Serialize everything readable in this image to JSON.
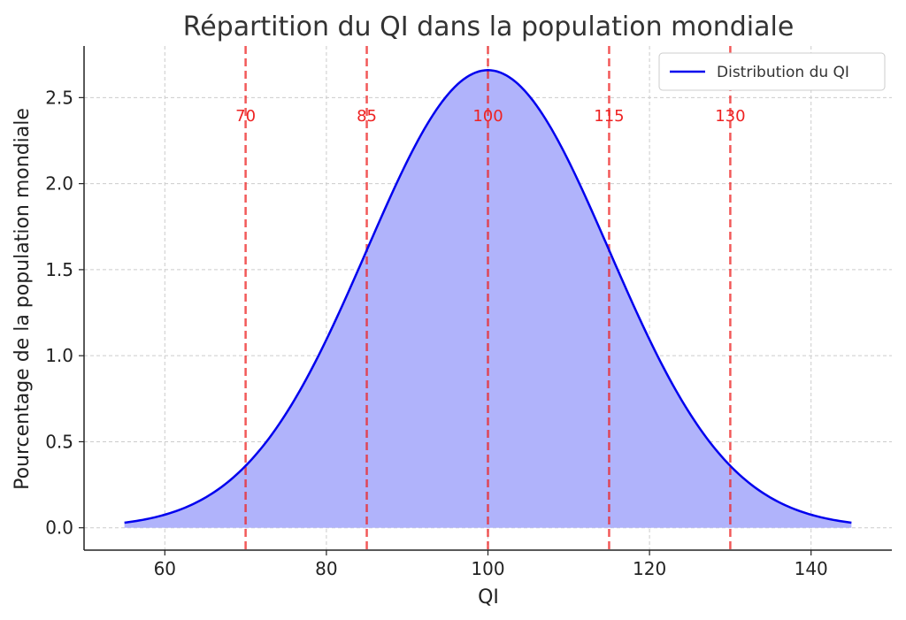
{
  "chart_data": {
    "type": "area",
    "title": "Répartition du QI dans la population mondiale",
    "xlabel": "QI",
    "ylabel": "Pourcentage de la population mondiale",
    "xlim": [
      50,
      150
    ],
    "ylim": [
      -0.13,
      2.8
    ],
    "x_ticks": [
      60,
      80,
      100,
      120,
      140
    ],
    "x_tick_labels": [
      "60",
      "80",
      "100",
      "120",
      "140"
    ],
    "y_ticks": [
      0.0,
      0.5,
      1.0,
      1.5,
      2.0,
      2.5
    ],
    "y_tick_labels": [
      "0.0",
      "0.5",
      "1.0",
      "1.5",
      "2.0",
      "2.5"
    ],
    "grid": true,
    "legend_position": "top-right",
    "series": [
      {
        "name": "Distribution du QI",
        "distribution": "normal",
        "mean": 100,
        "std": 15,
        "y_scale_percent": 100,
        "x_range": [
          55,
          145
        ],
        "color": "#0000ee",
        "fill_color": "#b0b3fb"
      }
    ],
    "vertical_lines": [
      {
        "x": 70,
        "label": "70"
      },
      {
        "x": 85,
        "label": "85"
      },
      {
        "x": 100,
        "label": "100"
      },
      {
        "x": 115,
        "label": "115"
      },
      {
        "x": 130,
        "label": "130"
      }
    ],
    "vertical_line_color": "#ee2222",
    "vertical_line_label_y": 2.4
  }
}
